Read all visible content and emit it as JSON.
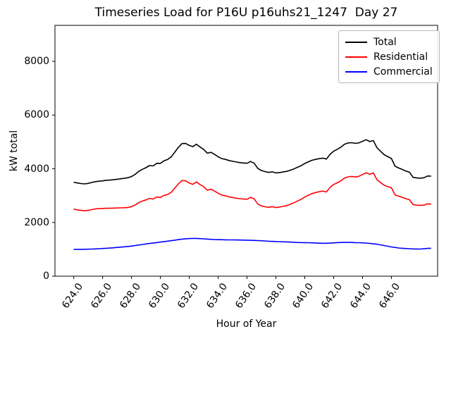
{
  "figure": {
    "title": "Timeseries Load for P16U p16uhs21_1247  Day 27"
  },
  "chart_data": {
    "type": "line",
    "title": "Timeseries Load for P16U p16uhs21_1247  Day 27",
    "xlabel": "Hour of Year",
    "ylabel": "kW total",
    "xlim": [
      622.7,
      649.2
    ],
    "ylim": [
      0,
      9340
    ],
    "grid": false,
    "xticks": {
      "values": [
        624,
        626,
        628,
        630,
        632,
        634,
        636,
        638,
        640,
        642,
        644,
        646
      ],
      "labels": [
        "624.0",
        "626.0",
        "628.0",
        "630.0",
        "632.0",
        "634.0",
        "636.0",
        "638.0",
        "640.0",
        "642.0",
        "644.0",
        "646.0"
      ]
    },
    "yticks": {
      "values": [
        0,
        2000,
        4000,
        6000,
        8000
      ],
      "labels": [
        "0",
        "2000",
        "4000",
        "6000",
        "8000"
      ]
    },
    "legend": {
      "position": "upper right",
      "entries": [
        {
          "label": "Total",
          "color": "#000000"
        },
        {
          "label": "Residential",
          "color": "#ff0000"
        },
        {
          "label": "Commercial",
          "color": "#0000ff"
        }
      ]
    },
    "x": [
      624.0,
      624.25,
      624.5,
      624.75,
      625.0,
      625.25,
      625.5,
      625.75,
      626.0,
      626.25,
      626.5,
      626.75,
      627.0,
      627.25,
      627.5,
      627.75,
      628.0,
      628.25,
      628.5,
      628.75,
      629.0,
      629.25,
      629.5,
      629.75,
      630.0,
      630.25,
      630.5,
      630.75,
      631.0,
      631.25,
      631.5,
      631.75,
      632.0,
      632.25,
      632.5,
      632.75,
      633.0,
      633.25,
      633.5,
      633.75,
      634.0,
      634.25,
      634.5,
      634.75,
      635.0,
      635.25,
      635.5,
      635.75,
      636.0,
      636.25,
      636.5,
      636.75,
      637.0,
      637.25,
      637.5,
      637.75,
      638.0,
      638.25,
      638.5,
      638.75,
      639.0,
      639.25,
      639.5,
      639.75,
      640.0,
      640.25,
      640.5,
      640.75,
      641.0,
      641.25,
      641.5,
      641.75,
      642.0,
      642.25,
      642.5,
      642.75,
      643.0,
      643.25,
      643.5,
      643.75,
      644.0,
      644.25,
      644.5,
      644.75,
      645.0,
      645.25,
      645.5,
      645.75,
      646.0,
      646.25,
      646.5,
      646.75,
      647.0,
      647.25,
      647.5,
      647.75,
      648.0,
      648.25,
      648.5,
      648.75
    ],
    "series": [
      {
        "name": "Total",
        "color": "#000000",
        "values": [
          3500,
          3470,
          3450,
          3437,
          3455,
          3490,
          3520,
          3537,
          3550,
          3570,
          3578,
          3593,
          3610,
          3627,
          3645,
          3668,
          3710,
          3790,
          3900,
          3980,
          4040,
          4118,
          4105,
          4202,
          4200,
          4298,
          4345,
          4442,
          4620,
          4802,
          4940,
          4942,
          4870,
          4825,
          4915,
          4808,
          4720,
          4580,
          4612,
          4535,
          4450,
          4378,
          4350,
          4307,
          4280,
          4253,
          4230,
          4217,
          4205,
          4270,
          4205,
          4010,
          3935,
          3897,
          3865,
          3885,
          3845,
          3860,
          3880,
          3905,
          3945,
          3997,
          4055,
          4117,
          4195,
          4260,
          4315,
          4350,
          4375,
          4396,
          4360,
          4535,
          4655,
          4725,
          4805,
          4913,
          4960,
          4971,
          4945,
          4965,
          5025,
          5082,
          5015,
          5050,
          4785,
          4650,
          4525,
          4450,
          4385,
          4095,
          4030,
          3975,
          3915,
          3872,
          3680,
          3657,
          3650,
          3665,
          3730,
          3725
        ]
      },
      {
        "name": "Residential",
        "color": "#ff0000",
        "values": [
          2500,
          2470,
          2450,
          2435,
          2450,
          2480,
          2505,
          2515,
          2520,
          2530,
          2530,
          2535,
          2540,
          2545,
          2550,
          2560,
          2590,
          2650,
          2740,
          2800,
          2840,
          2900,
          2870,
          2950,
          2930,
          3010,
          3040,
          3120,
          3280,
          3440,
          3560,
          3550,
          3470,
          3420,
          3510,
          3410,
          3330,
          3200,
          3240,
          3170,
          3090,
          3020,
          2995,
          2955,
          2930,
          2905,
          2885,
          2875,
          2865,
          2935,
          2875,
          2685,
          2615,
          2585,
          2565,
          2590,
          2555,
          2575,
          2600,
          2630,
          2675,
          2735,
          2800,
          2865,
          2945,
          3015,
          3075,
          3115,
          3145,
          3170,
          3135,
          3305,
          3415,
          3475,
          3550,
          3655,
          3700,
          3715,
          3695,
          3720,
          3785,
          3850,
          3795,
          3845,
          3595,
          3485,
          3385,
          3335,
          3295,
          3025,
          2980,
          2935,
          2885,
          2850,
          2665,
          2645,
          2640,
          2645,
          2695,
          2685
        ]
      },
      {
        "name": "Commercial",
        "color": "#0000ff",
        "values": [
          1000,
          1000,
          1000,
          1002,
          1005,
          1010,
          1015,
          1022,
          1030,
          1040,
          1048,
          1058,
          1070,
          1082,
          1095,
          1108,
          1120,
          1140,
          1160,
          1180,
          1200,
          1218,
          1235,
          1252,
          1270,
          1288,
          1305,
          1322,
          1340,
          1362,
          1380,
          1392,
          1400,
          1405,
          1405,
          1398,
          1390,
          1380,
          1372,
          1365,
          1360,
          1358,
          1355,
          1352,
          1350,
          1348,
          1345,
          1342,
          1340,
          1335,
          1330,
          1325,
          1320,
          1312,
          1300,
          1295,
          1290,
          1285,
          1280,
          1275,
          1270,
          1262,
          1255,
          1252,
          1250,
          1245,
          1240,
          1235,
          1230,
          1226,
          1225,
          1230,
          1240,
          1250,
          1255,
          1258,
          1260,
          1256,
          1250,
          1245,
          1240,
          1232,
          1220,
          1205,
          1190,
          1165,
          1140,
          1115,
          1090,
          1070,
          1050,
          1040,
          1030,
          1022,
          1015,
          1012,
          1010,
          1020,
          1035,
          1040
        ]
      }
    ]
  }
}
